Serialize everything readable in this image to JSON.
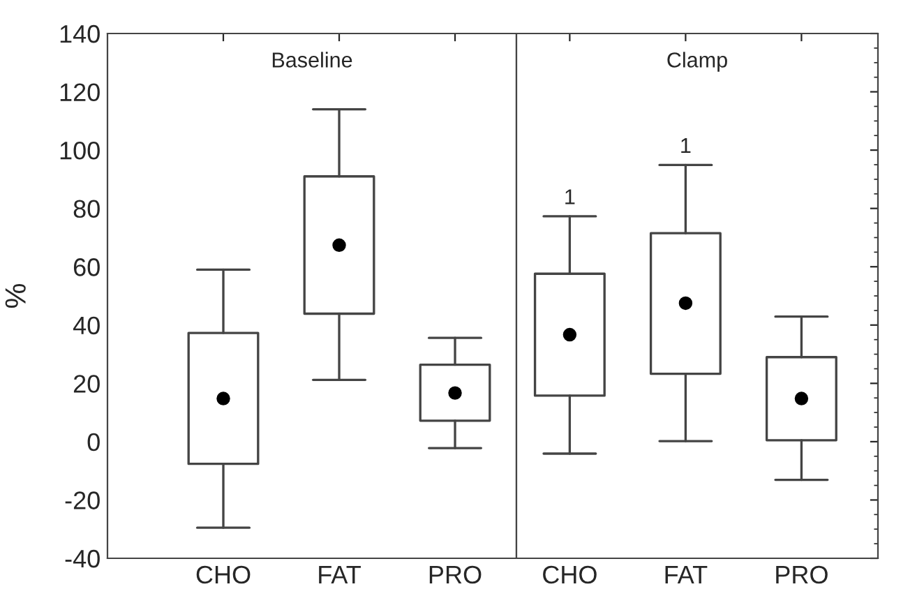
{
  "chart_data": [
    {
      "type": "box",
      "title": "Baseline",
      "ylabel": "%",
      "categories": [
        "CHO",
        "FAT",
        "PRO"
      ],
      "ylim": [
        -40,
        140
      ],
      "yticks": [
        -40,
        -20,
        0,
        20,
        40,
        60,
        80,
        100,
        120,
        140
      ],
      "grid": false,
      "boxes": [
        {
          "low": -29.5,
          "q1": -7.6,
          "median": 14.8,
          "q3": 37.3,
          "high": 59
        },
        {
          "low": 21.2,
          "q1": 43.9,
          "median": 67.4,
          "q3": 91,
          "high": 114
        },
        {
          "low": -2.2,
          "q1": 7.2,
          "median": 16.7,
          "q3": 26.4,
          "high": 35.6
        }
      ]
    },
    {
      "type": "box",
      "title": "Clamp",
      "categories": [
        "CHO",
        "FAT",
        "PRO"
      ],
      "ylim": [
        -40,
        140
      ],
      "yticks": [
        -40,
        -20,
        0,
        20,
        40,
        60,
        80,
        100,
        120,
        140
      ],
      "tick_labels": "x",
      "grid": false,
      "boxes": [
        {
          "low": -4.1,
          "q1": 15.8,
          "median": 36.7,
          "q3": 57.6,
          "high": 77.3
        },
        {
          "low": 0.2,
          "q1": 23.3,
          "median": 47.5,
          "q3": 71.5,
          "high": 94.9
        },
        {
          "low": -13.1,
          "q1": 0.5,
          "median": 14.8,
          "q3": 29,
          "high": 42.9
        }
      ],
      "annotations": [
        {
          "text": "1",
          "x": "CHO",
          "y": 77.3
        },
        {
          "text": "1",
          "x": "FAT",
          "y": 94.9
        }
      ]
    }
  ]
}
